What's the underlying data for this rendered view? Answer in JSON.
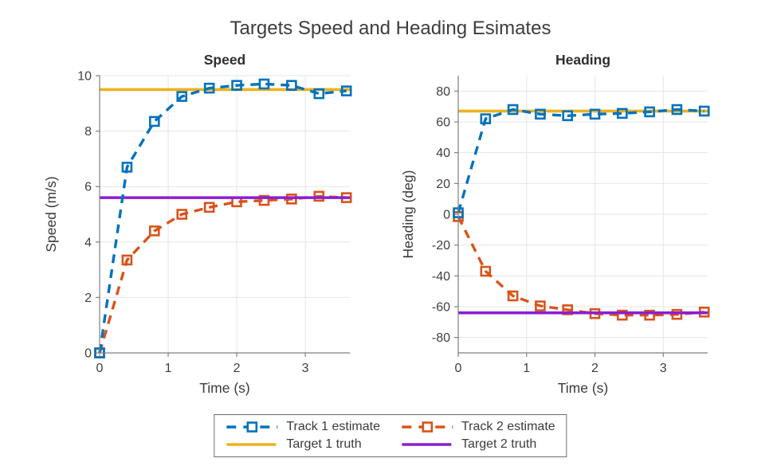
{
  "figure": {
    "title": "Targets Speed and Heading Esimates"
  },
  "colors": {
    "track1_blue": "#0072BD",
    "track2_orange": "#D95319",
    "truth1_yellow": "#EDB120",
    "truth2_purple": "#8C1ED2",
    "axis_spine": "#7F7F7F",
    "grid": "#E6E6E6",
    "tick_text": "#3F3F3F",
    "label_text": "#3A3A3A"
  },
  "legend": {
    "items": [
      {
        "label": "Track 1 estimate",
        "style": "estimate",
        "color": "#0072BD"
      },
      {
        "label": "Track 2 estimate",
        "style": "estimate",
        "color": "#D95319"
      },
      {
        "label": "Target 1 truth",
        "style": "truth",
        "color": "#EDB120"
      },
      {
        "label": "Target 2 truth",
        "style": "truth",
        "color": "#8C1ED2"
      }
    ]
  },
  "chart_data": [
    {
      "type": "line",
      "name": "speed",
      "title": "Speed",
      "xlabel": "Time (s)",
      "ylabel": "Speed (m/s)",
      "xlim": [
        0,
        3.65
      ],
      "ylim": [
        0,
        10
      ],
      "xticks": [
        0,
        1,
        2,
        3
      ],
      "yticks": [
        0,
        2,
        4,
        6,
        8,
        10
      ],
      "grid": true,
      "x": [
        0,
        0.4,
        0.8,
        1.2,
        1.6,
        2.0,
        2.4,
        2.8,
        3.2,
        3.6
      ],
      "series": [
        {
          "name": "Track 1 estimate",
          "kind": "estimate",
          "color": "#0072BD",
          "line": "dashed",
          "marker": "square",
          "z": 4,
          "values": [
            0,
            6.7,
            8.35,
            9.25,
            9.55,
            9.65,
            9.7,
            9.65,
            9.35,
            9.45
          ]
        },
        {
          "name": "Track 2 estimate",
          "kind": "estimate",
          "color": "#D95319",
          "line": "dashed",
          "marker": "square",
          "z": 1,
          "values": [
            0,
            3.35,
            4.4,
            5.0,
            5.25,
            5.45,
            5.5,
            5.55,
            5.65,
            5.6
          ]
        },
        {
          "name": "Target 1 truth",
          "kind": "truth",
          "color": "#EDB120",
          "line": "solid",
          "z": 3,
          "constant": 9.5
        },
        {
          "name": "Target 2 truth",
          "kind": "truth",
          "color": "#8C1ED2",
          "line": "solid",
          "z": 2,
          "constant": 5.6
        }
      ]
    },
    {
      "type": "line",
      "name": "heading",
      "title": "Heading",
      "xlabel": "Time (s)",
      "ylabel": "Heading (deg)",
      "xlim": [
        0,
        3.65
      ],
      "ylim": [
        -90,
        90
      ],
      "xticks": [
        0,
        1,
        2,
        3
      ],
      "yticks": [
        -80,
        -60,
        -40,
        -20,
        0,
        20,
        40,
        60,
        80
      ],
      "grid": true,
      "x": [
        0,
        0.4,
        0.8,
        1.2,
        1.6,
        2.0,
        2.4,
        2.8,
        3.2,
        3.6
      ],
      "series": [
        {
          "name": "Track 1 estimate",
          "kind": "estimate",
          "color": "#0072BD",
          "line": "dashed",
          "marker": "square",
          "z": 4,
          "values": [
            1,
            62,
            68,
            65,
            64,
            65,
            65.5,
            66.5,
            68,
            67
          ]
        },
        {
          "name": "Track 2 estimate",
          "kind": "estimate",
          "color": "#D95319",
          "line": "dashed",
          "marker": "square",
          "z": 1,
          "values": [
            -1.5,
            -37,
            -53,
            -59.5,
            -62,
            -64.5,
            -65.5,
            -65.5,
            -65,
            -63.5
          ]
        },
        {
          "name": "Target 1 truth",
          "kind": "truth",
          "color": "#EDB120",
          "line": "solid",
          "z": 3,
          "constant": 67
        },
        {
          "name": "Target 2 truth",
          "kind": "truth",
          "color": "#8C1ED2",
          "line": "solid",
          "z": 2,
          "constant": -64
        }
      ]
    }
  ]
}
